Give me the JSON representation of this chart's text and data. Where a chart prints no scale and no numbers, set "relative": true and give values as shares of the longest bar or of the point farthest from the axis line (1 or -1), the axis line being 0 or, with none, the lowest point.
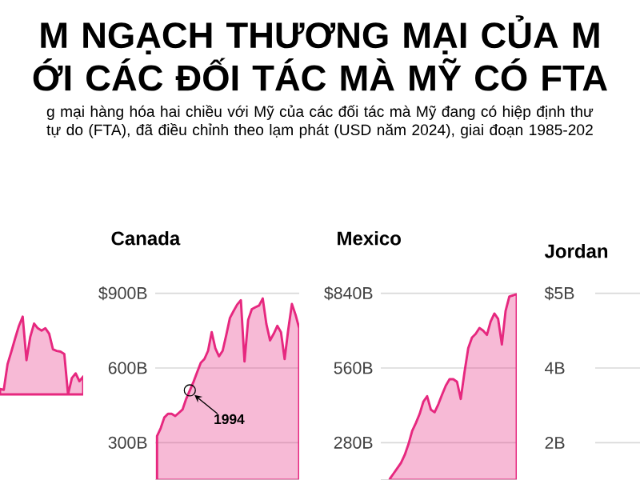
{
  "chart_data": [
    {
      "type": "area",
      "title": "M NGẠCH THƯƠNG MẠI CỦA M ỚI CÁC ĐỐI TÁC MÀ MỸ CÓ FTA",
      "subtitle": "g mại hàng hóa hai chiều với Mỹ của các đối tác mà Mỹ đang có hiệp định thư tự do (FTA), đã điều chỉnh theo lạm phát (USD năm 2024), giai đoạn 1985-202",
      "relative": true,
      "tick_labels": false,
      "color": "#e6287f",
      "categories": [
        null,
        null,
        null,
        null,
        null,
        null,
        null,
        null,
        null,
        null,
        null,
        null,
        null,
        null,
        null,
        null,
        null,
        null,
        null,
        null,
        null,
        null,
        null
      ],
      "values": [
        0.07,
        0.06,
        0.39,
        0.55,
        0.72,
        0.88,
        1.0,
        0.44,
        0.74,
        0.91,
        0.85,
        0.82,
        0.85,
        0.78,
        0.58,
        0.56,
        0.55,
        0.52,
        0.0,
        0.21,
        0.27,
        0.17,
        0.23
      ]
    },
    {
      "type": "area",
      "title": "Canada",
      "color": "#e6287f",
      "tick_labels": "y",
      "grid": "y",
      "ylim": [
        150,
        900
      ],
      "yticks": [
        {
          "value": 900,
          "label": "$900B"
        },
        {
          "value": 600,
          "label": "600B"
        },
        {
          "value": 300,
          "label": "300B"
        }
      ],
      "annotations": [
        "1994"
      ],
      "categories": [
        null,
        null,
        null,
        null,
        null,
        null,
        null,
        null,
        null,
        null,
        null,
        null,
        null,
        null,
        null,
        null,
        null,
        null,
        null,
        null,
        null,
        null,
        null,
        null,
        null,
        null,
        null,
        null,
        null,
        null,
        null,
        null,
        null,
        null,
        null,
        null,
        null,
        null,
        null,
        null
      ],
      "values": [
        326,
        358,
        401,
        416,
        416,
        407,
        420,
        433,
        476,
        510,
        544,
        583,
        621,
        636,
        669,
        744,
        679,
        647,
        669,
        733,
        801,
        829,
        855,
        872,
        626,
        793,
        836,
        844,
        851,
        879,
        776,
        711,
        737,
        769,
        744,
        636,
        754,
        857,
        814,
        759
      ]
    },
    {
      "type": "area",
      "title": "Mexico",
      "color": "#e6287f",
      "tick_labels": "y",
      "grid": "y",
      "ylim": [
        140,
        840
      ],
      "yticks": [
        {
          "value": 840,
          "label": "$840B"
        },
        {
          "value": 560,
          "label": "560B"
        },
        {
          "value": 280,
          "label": "280B"
        }
      ],
      "categories": [
        null,
        null,
        null,
        null,
        null,
        null,
        null,
        null,
        null,
        null,
        null,
        null,
        null,
        null,
        null,
        null,
        null,
        null,
        null,
        null,
        null,
        null,
        null,
        null,
        null,
        null,
        null,
        null,
        null,
        null,
        null,
        null,
        null,
        null,
        null
      ],
      "values": [
        144,
        164,
        184,
        204,
        234,
        274,
        324,
        354,
        388,
        434,
        454,
        404,
        394,
        424,
        460,
        494,
        518,
        518,
        508,
        444,
        544,
        634,
        674,
        688,
        710,
        700,
        684,
        734,
        764,
        744,
        648,
        774,
        828,
        832,
        838
      ]
    },
    {
      "type": "other",
      "title": "Jordan",
      "annotations": [
        "$5B",
        "4B",
        "2B"
      ]
    }
  ]
}
